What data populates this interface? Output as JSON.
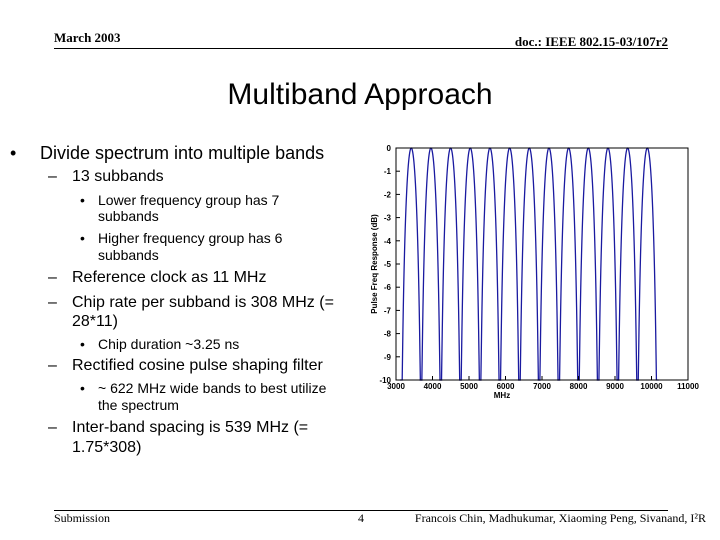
{
  "header": {
    "date": "March 2003",
    "doc": "doc.: IEEE 802.15-03/107r2"
  },
  "title": "Multiband Approach",
  "bullets": {
    "b1": "Divide spectrum into multiple bands",
    "b1_1": "13 subbands",
    "b1_1_1a": "Lower frequency group has 7",
    "b1_1_1b": "subbands",
    "b1_1_2a": "Higher frequency group has 6",
    "b1_1_2b": "subbands",
    "b1_2": "Reference clock as 11 MHz",
    "b1_3a": "Chip rate per subband is 308 MHz (=",
    "b1_3b": "28*11)",
    "b1_3_1": "Chip duration ~3.25 ns",
    "b1_4": "Rectified cosine pulse shaping filter",
    "b1_4_1a": "~ 622 MHz wide bands to best utilize",
    "b1_4_1b": "the spectrum",
    "b1_5a": "Inter-band spacing is 539 MHz (=",
    "b1_5b": "1.75*308)"
  },
  "footer": {
    "left": "Submission",
    "page": "4",
    "right": "Francois Chin, Madhukumar, Xiaoming Peng, Sivanand, I²R"
  },
  "colors": {
    "accent": "#1a1aa0"
  },
  "chart_data": {
    "type": "line",
    "xlabel": "MHz",
    "ylabel": "Pulse Freq Response (dB)",
    "xlim": [
      3000,
      11000
    ],
    "ylim": [
      -10,
      0
    ],
    "xticks": [
      3000,
      4000,
      5000,
      6000,
      7000,
      8000,
      9000,
      10000,
      11000
    ],
    "yticks": [
      0,
      -1,
      -2,
      -3,
      -4,
      -5,
      -6,
      -7,
      -8,
      -9,
      -10
    ],
    "grid": false,
    "subband_centers_mhz": [
      3418,
      3957,
      4496,
      5035,
      5574,
      6113,
      6652,
      7191,
      7730,
      8269,
      8808,
      9347,
      9886
    ],
    "subband_width_mhz": 622
  }
}
